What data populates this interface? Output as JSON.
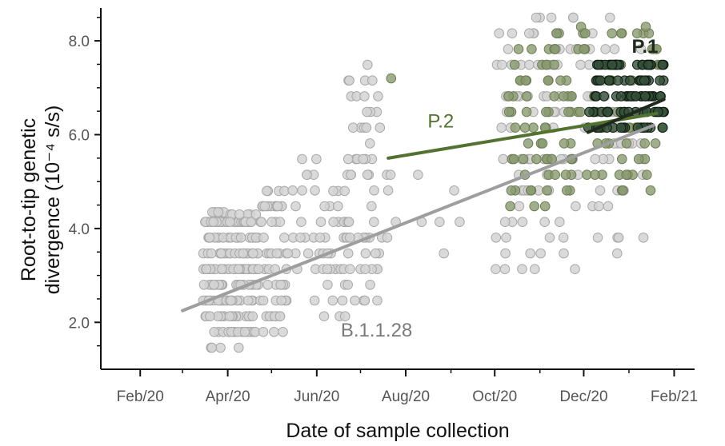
{
  "colors": {
    "B.1.1.28": "#9e9e9e",
    "P.2": "#52722f",
    "P.1": "#1f2a1c",
    "point_B.1.1.28": "#d4d4d4",
    "point_P.2": "#8a9a6f",
    "point_P.1": "#35503a"
  },
  "chart_data": {
    "type": "scatter",
    "title": "",
    "xlabel": "Date of sample collection",
    "ylabel_line1": "Root-to-tip genetic",
    "ylabel_line2": "divergence (10⁻⁴ s/s)",
    "xlim": [
      "2020-01-05",
      "2021-02-15"
    ],
    "ylim": [
      1.0,
      8.7
    ],
    "x_ticks": [
      {
        "date": "2020-02-01",
        "label": "Feb/20"
      },
      {
        "date": "2020-04-01",
        "label": "Apr/20"
      },
      {
        "date": "2020-06-01",
        "label": "Jun/20"
      },
      {
        "date": "2020-08-01",
        "label": "Aug/20"
      },
      {
        "date": "2020-10-01",
        "label": "Oct/20"
      },
      {
        "date": "2020-12-01",
        "label": "Dec/20"
      },
      {
        "date": "2021-02-01",
        "label": "Feb/21"
      }
    ],
    "y_ticks": [
      {
        "value": 2.0,
        "label": "2.0"
      },
      {
        "value": 4.0,
        "label": "4.0"
      },
      {
        "value": 6.0,
        "label": "6.0"
      },
      {
        "value": 8.0,
        "label": "8.0"
      }
    ],
    "series": [
      {
        "name": "B.1.1.28",
        "clusters": [
          {
            "from": "2020-03-15",
            "to": "2020-04-02",
            "ymin": 1.45,
            "ymax": 4.35,
            "n": 110
          },
          {
            "from": "2020-04-02",
            "to": "2020-04-22",
            "ymin": 1.45,
            "ymax": 4.3,
            "n": 110
          },
          {
            "from": "2020-04-22",
            "to": "2020-05-12",
            "ymin": 1.75,
            "ymax": 4.8,
            "n": 60
          },
          {
            "from": "2020-05-12",
            "to": "2020-06-01",
            "ymin": 2.45,
            "ymax": 5.5,
            "n": 20
          },
          {
            "from": "2020-06-01",
            "to": "2020-06-22",
            "ymin": 1.8,
            "ymax": 4.8,
            "n": 35
          },
          {
            "from": "2020-06-22",
            "to": "2020-07-15",
            "ymin": 2.1,
            "ymax": 7.55,
            "n": 55
          },
          {
            "from": "2020-07-15",
            "to": "2020-09-12",
            "ymin": 3.45,
            "ymax": 5.55,
            "n": 12
          },
          {
            "from": "2020-10-01",
            "to": "2020-11-10",
            "ymin": 2.8,
            "ymax": 8.55,
            "n": 60
          },
          {
            "from": "2020-11-10",
            "to": "2021-01-15",
            "ymin": 3.1,
            "ymax": 8.5,
            "n": 75
          }
        ],
        "trend": {
          "x": [
            "2020-03-01",
            "2021-01-18"
          ],
          "y": [
            2.25,
            6.2
          ]
        },
        "label": "B.1.1.28",
        "label_at": {
          "date": "2020-07-12",
          "value": 1.7
        }
      },
      {
        "name": "P.2",
        "clusters": [
          {
            "from": "2020-10-10",
            "to": "2020-11-08",
            "ymin": 4.15,
            "ymax": 7.9,
            "n": 45
          },
          {
            "from": "2020-11-08",
            "to": "2021-01-25",
            "ymin": 4.7,
            "ymax": 8.3,
            "n": 90
          }
        ],
        "outliers": [
          {
            "x": "2020-07-22",
            "y": 7.2
          }
        ],
        "trend": {
          "x": [
            "2020-07-20",
            "2021-01-20"
          ],
          "y": [
            5.5,
            6.45
          ]
        },
        "label": "P.2",
        "label_at": {
          "date": "2020-08-25",
          "value": 6.15
        }
      },
      {
        "name": "P.1",
        "clusters": [
          {
            "from": "2020-12-04",
            "to": "2021-01-25",
            "ymin": 5.9,
            "ymax": 7.6,
            "n": 100
          }
        ],
        "trend": {
          "x": [
            "2020-12-04",
            "2021-01-25"
          ],
          "y": [
            6.05,
            6.75
          ]
        },
        "label": "P.1",
        "label_at": {
          "date": "2021-01-12",
          "value": 7.75
        }
      }
    ],
    "grid": false,
    "legend": "none"
  }
}
